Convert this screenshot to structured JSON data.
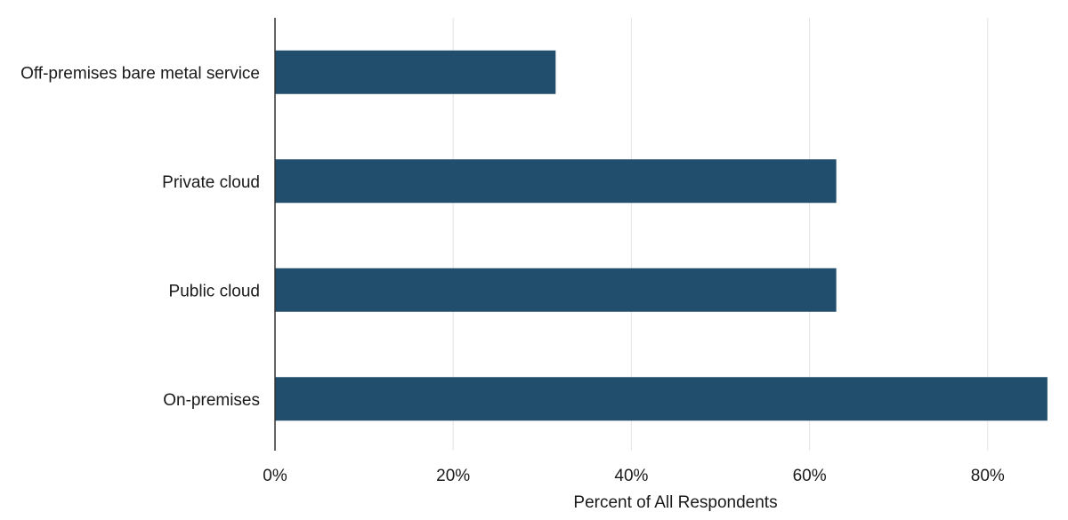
{
  "chart_data": {
    "type": "bar",
    "orientation": "horizontal",
    "categories": [
      "Off-premises bare metal service",
      "Private cloud",
      "Public cloud",
      "On-premises"
    ],
    "values": [
      31.5,
      63.0,
      63.0,
      86.7
    ],
    "xlabel": "Percent of All Respondents",
    "ylabel": "",
    "xlim": [
      0,
      87
    ],
    "xticks": [
      0,
      20,
      40,
      60,
      80
    ],
    "xtick_labels": [
      "0%",
      "20%",
      "40%",
      "60%",
      "80%"
    ],
    "grid": "vertical",
    "bar_color": "#224e6d"
  }
}
